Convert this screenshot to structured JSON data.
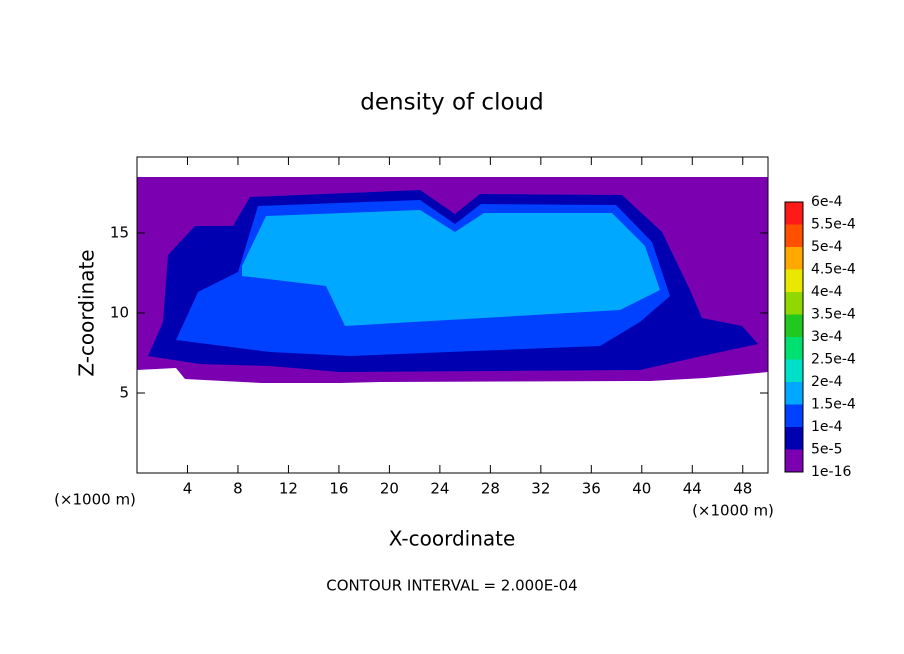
{
  "chart_data": {
    "type": "contour",
    "title": "density of cloud",
    "xlabel": "X-coordinate",
    "ylabel": "Z-coordinate",
    "x_unit": "(×1000 m)",
    "annotation": "CONTOUR INTERVAL = 2.000E-04",
    "xlim": [
      0,
      50
    ],
    "xticks": [
      4,
      8,
      12,
      16,
      20,
      24,
      28,
      32,
      36,
      40,
      44,
      48
    ],
    "ylim": [
      0,
      19.75
    ],
    "yticks": [
      5,
      10,
      15
    ],
    "colorbar": {
      "levels": [
        1e-16,
        {
          "value": 5e-05,
          "label": "5e-5"
        },
        {
          "value": 0.0001,
          "label": "1e-4"
        },
        {
          "value": 0.00015,
          "label": "1.5e-4"
        },
        {
          "value": 0.0002,
          "label": "2e-4"
        },
        {
          "value": 0.00025,
          "label": "2.5e-4"
        },
        {
          "value": 0.0003,
          "label": "3e-4"
        },
        {
          "value": 0.00035,
          "label": "3.5e-4"
        },
        {
          "value": 0.0004,
          "label": "4e-4"
        },
        {
          "value": 0.00045,
          "label": "4.5e-4"
        },
        {
          "value": 0.0005,
          "label": "5e-4"
        },
        {
          "value": 0.00055,
          "label": "5.5e-4"
        },
        {
          "value": 0.0006,
          "label": "6e-4"
        }
      ],
      "colors": [
        "#7a00b0",
        "#0000b0",
        "#0040ff",
        "#00a8ff",
        "#00e0c8",
        "#00e070",
        "#20c820",
        "#90d800",
        "#e8e800",
        "#ffa800",
        "#ff5000",
        "#ff1a1a"
      ]
    }
  }
}
